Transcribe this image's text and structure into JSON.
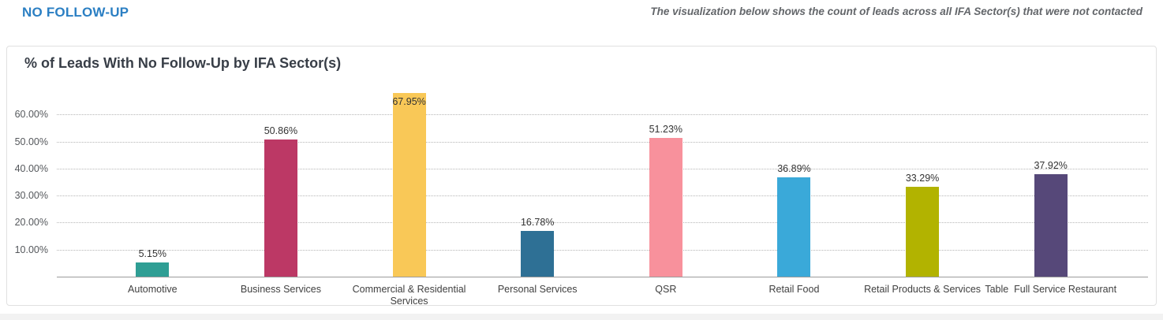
{
  "header": {
    "title": "NO FOLLOW-UP",
    "subtitle": "The visualization below shows the count of leads across all IFA Sector(s) that were not contacted"
  },
  "chart_data": {
    "type": "bar",
    "title": "% of Leads With No Follow-Up by IFA Sector(s)",
    "categories": [
      "Automotive",
      "Business Services",
      "Commercial & Residential Services",
      "Personal Services",
      "QSR",
      "Retail Food",
      "Retail Products & Services",
      "Table  Full Service Restaurant"
    ],
    "values": [
      5.15,
      50.86,
      67.95,
      16.78,
      51.23,
      36.89,
      33.29,
      37.92
    ],
    "value_labels": [
      "5.15%",
      "50.86%",
      "67.95%",
      "16.78%",
      "51.23%",
      "36.89%",
      "33.29%",
      "37.92%"
    ],
    "bar_colors": [
      "#2f9e94",
      "#bc3865",
      "#f9c857",
      "#2e7095",
      "#f8919c",
      "#3aa9d9",
      "#b2b300",
      "#564879"
    ],
    "xlabel": "",
    "ylabel": "",
    "ylim": [
      0,
      70
    ],
    "yticks": [
      10,
      20,
      30,
      40,
      50,
      60
    ],
    "ytick_labels": [
      "10.00%",
      "20.00%",
      "30.00%",
      "40.00%",
      "50.00%",
      "60.00%"
    ],
    "grid": "horizontal-dotted",
    "legend": "none"
  },
  "colors": {
    "accent_blue": "#2b7fc3",
    "subtitle_gray": "#63666a",
    "panel_border": "#e0e0e0",
    "gridline": "#b6b6b6",
    "axis_line": "#9b9b9b",
    "next_section_strip": "#f2f2f2"
  }
}
